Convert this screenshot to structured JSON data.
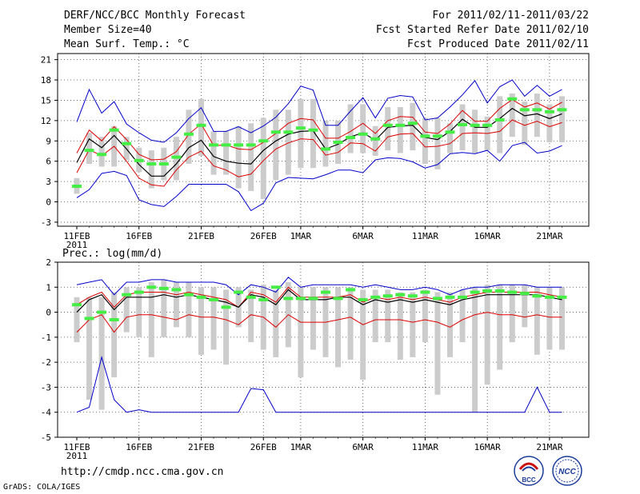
{
  "header": {
    "title": "DERF/NCC/BCC Monthly Forecast",
    "member_size": "Member Size=40",
    "variable": "Mean Surf. Temp.: °C",
    "period": "For 2011/02/11-2011/03/22",
    "started": "Fcst Started Refer Date 2011/02/10",
    "produced": "Fcst Produced Date 2011/02/11"
  },
  "footer": {
    "url": "http://cmdp.ncc.cma.gov.cn",
    "grads": "GrADS: COLA/IGES",
    "logo_bcc": "BCC",
    "logo_ncc": "NCC"
  },
  "colors": {
    "bar": "#cccccc",
    "median": "#44ee44",
    "mean": "#000000",
    "inner": "#dd0000",
    "outer": "#0000cc",
    "grid": "#444444"
  },
  "chart_data": [
    {
      "type": "line",
      "title": "Mean Surf. Temp.: °C",
      "x_tick_labels": [
        "11FEB",
        "16FEB",
        "21FEB",
        "26FEB",
        "1MAR",
        "6MAR",
        "11MAR",
        "16MAR",
        "21MAR"
      ],
      "x_tick_day_index": [
        0,
        5,
        10,
        15,
        18,
        23,
        28,
        33,
        38
      ],
      "x_year_label": "2011",
      "yticks": [
        -3,
        0,
        3,
        6,
        9,
        12,
        15,
        18,
        21
      ],
      "ylim": [
        -3.6,
        21.9
      ],
      "days": 40,
      "series": [
        {
          "name": "max",
          "values": [
            11.8,
            16.6,
            13.1,
            14.8,
            11.5,
            10.2,
            9.1,
            8.8,
            10.2,
            12.3,
            13.9,
            10.4,
            10.4,
            11.1,
            10.2,
            11.2,
            12.5,
            14.5,
            17.1,
            16.5,
            11.3,
            11.3,
            13.4,
            15.4,
            12.4,
            15.3,
            15.7,
            15.5,
            12.1,
            12.4,
            14.0,
            15.8,
            17.9,
            14.6,
            17.0,
            18.0,
            15.6,
            17.2,
            15.6,
            16.6
          ]
        },
        {
          "name": "upper",
          "values": [
            7.2,
            10.6,
            9.0,
            11.1,
            9.2,
            7.0,
            6.2,
            6.3,
            7.4,
            10.0,
            11.5,
            8.3,
            8.4,
            7.8,
            7.7,
            8.8,
            10.1,
            11.6,
            12.3,
            12.1,
            9.4,
            9.4,
            10.4,
            11.6,
            10.1,
            12.0,
            12.6,
            12.5,
            10.3,
            10.1,
            11.5,
            13.5,
            11.9,
            11.9,
            13.8,
            15.1,
            14.0,
            14.6,
            13.7,
            14.7
          ]
        },
        {
          "name": "mean",
          "values": [
            5.8,
            9.3,
            8.0,
            9.8,
            7.8,
            5.5,
            3.8,
            3.8,
            5.6,
            8.0,
            9.1,
            6.7,
            6.0,
            5.7,
            5.6,
            7.6,
            9.0,
            10.0,
            10.4,
            10.5,
            7.8,
            8.5,
            9.6,
            10.2,
            9.1,
            11.0,
            11.2,
            11.3,
            9.5,
            9.2,
            10.4,
            12.2,
            11.0,
            11.0,
            12.3,
            13.8,
            12.7,
            13.0,
            12.3,
            13.0
          ]
        },
        {
          "name": "lower",
          "values": [
            4.3,
            7.7,
            6.8,
            8.2,
            6.0,
            3.5,
            2.5,
            2.3,
            4.7,
            6.6,
            7.5,
            5.3,
            4.7,
            3.7,
            4.1,
            6.1,
            7.8,
            8.7,
            9.3,
            9.2,
            6.9,
            7.3,
            8.7,
            8.6,
            7.5,
            9.6,
            10.0,
            10.1,
            8.1,
            8.2,
            8.6,
            10.1,
            10.2,
            10.1,
            10.4,
            12.1,
            11.3,
            11.9,
            11.1,
            11.7
          ]
        },
        {
          "name": "min",
          "values": [
            0.6,
            1.8,
            4.2,
            4.5,
            3.9,
            0.3,
            -0.4,
            -0.7,
            0.8,
            2.6,
            2.6,
            2.6,
            2.6,
            1.5,
            -1.3,
            -0.2,
            2.8,
            3.6,
            3.5,
            3.4,
            4.0,
            4.7,
            4.7,
            4.3,
            6.2,
            6.5,
            6.4,
            5.9,
            5.0,
            5.5,
            7.1,
            7.3,
            7.1,
            7.6,
            6.0,
            8.3,
            8.8,
            7.2,
            7.5,
            8.3
          ]
        },
        {
          "name": "median",
          "values": [
            2.3,
            7.6,
            7.0,
            10.6,
            8.6,
            6.1,
            5.6,
            5.6,
            6.6,
            10.0,
            11.3,
            8.4,
            8.4,
            8.4,
            8.4,
            9.0,
            10.3,
            10.3,
            10.9,
            10.6,
            7.8,
            8.8,
            9.5,
            10.0,
            9.3,
            11.3,
            11.3,
            11.6,
            9.7,
            9.7,
            10.3,
            11.4,
            11.3,
            11.3,
            12.1,
            15.2,
            13.6,
            13.6,
            13.3,
            13.6
          ]
        },
        {
          "name": "bar_top",
          "values": [
            3.5,
            10.2,
            9.6,
            11.2,
            9.6,
            8.0,
            7.6,
            8.0,
            9.6,
            13.6,
            15.2,
            10.4,
            10.4,
            11.2,
            11.6,
            12.4,
            13.6,
            13.6,
            15.2,
            15.2,
            12.0,
            12.0,
            14.4,
            14.4,
            11.2,
            14.0,
            14.0,
            14.6,
            12.4,
            12.4,
            11.6,
            14.4,
            13.6,
            12.6,
            15.6,
            16.0,
            14.8,
            16.0,
            14.4,
            15.6
          ]
        },
        {
          "name": "bar_bottom",
          "values": [
            1.2,
            5.6,
            5.2,
            5.2,
            6.2,
            4.4,
            2.0,
            3.2,
            3.2,
            5.6,
            6.8,
            4.0,
            4.0,
            2.0,
            1.6,
            0.4,
            3.2,
            4.0,
            5.0,
            5.0,
            5.2,
            5.6,
            7.2,
            7.2,
            6.8,
            7.6,
            7.2,
            7.6,
            5.6,
            4.8,
            7.2,
            7.6,
            7.2,
            7.6,
            7.2,
            9.6,
            8.4,
            9.6,
            8.8,
            8.8
          ]
        }
      ]
    },
    {
      "type": "line",
      "title": "Prec.: log(mm/d)",
      "x_tick_labels": [
        "11FEB",
        "16FEB",
        "21FEB",
        "26FEB",
        "1MAR",
        "6MAR",
        "11MAR",
        "16MAR",
        "21MAR"
      ],
      "x_tick_day_index": [
        0,
        5,
        10,
        15,
        18,
        23,
        28,
        33,
        38
      ],
      "x_year_label": "2011",
      "yticks": [
        -5,
        -4,
        -3,
        -2,
        -1,
        0,
        1,
        2
      ],
      "ylim": [
        -5,
        2
      ],
      "days": 40,
      "series": [
        {
          "name": "max",
          "values": [
            1.1,
            1.2,
            1.3,
            0.7,
            1.2,
            1.2,
            1.3,
            1.3,
            1.2,
            1.2,
            1.2,
            1.2,
            1.1,
            0.7,
            1.1,
            1.0,
            0.8,
            1.4,
            1.0,
            1.1,
            1.1,
            1.1,
            1.1,
            1.0,
            1.1,
            1.0,
            0.9,
            0.9,
            1.0,
            0.9,
            0.7,
            0.9,
            1.0,
            1.0,
            1.1,
            1.1,
            1.1,
            1.0,
            1.0,
            1.0
          ]
        },
        {
          "name": "upper",
          "values": [
            0.3,
            0.6,
            0.8,
            0.2,
            0.7,
            0.8,
            0.8,
            0.8,
            0.7,
            0.8,
            0.7,
            0.6,
            0.5,
            0.2,
            0.8,
            0.7,
            0.4,
            1.0,
            0.6,
            0.6,
            0.6,
            0.6,
            0.7,
            0.4,
            0.6,
            0.5,
            0.6,
            0.5,
            0.6,
            0.5,
            0.4,
            0.6,
            0.7,
            0.8,
            0.8,
            0.8,
            0.8,
            0.8,
            0.7,
            0.6
          ]
        },
        {
          "name": "mean",
          "values": [
            0.0,
            0.5,
            0.7,
            0.1,
            0.6,
            0.6,
            0.6,
            0.7,
            0.6,
            0.7,
            0.6,
            0.5,
            0.4,
            0.2,
            0.7,
            0.6,
            0.3,
            0.9,
            0.5,
            0.5,
            0.5,
            0.6,
            0.6,
            0.3,
            0.5,
            0.4,
            0.5,
            0.4,
            0.5,
            0.4,
            0.3,
            0.5,
            0.6,
            0.7,
            0.7,
            0.7,
            0.7,
            0.7,
            0.6,
            0.5
          ]
        },
        {
          "name": "lower",
          "values": [
            -0.8,
            -0.3,
            -0.1,
            -0.8,
            -0.2,
            -0.1,
            -0.1,
            -0.2,
            -0.3,
            -0.1,
            -0.2,
            -0.2,
            -0.3,
            -0.5,
            -0.1,
            -0.2,
            -0.6,
            -0.1,
            -0.4,
            -0.4,
            -0.4,
            -0.3,
            -0.2,
            -0.5,
            -0.3,
            -0.3,
            -0.3,
            -0.4,
            -0.3,
            -0.4,
            -0.6,
            -0.3,
            -0.1,
            0.0,
            -0.1,
            -0.1,
            -0.2,
            -0.1,
            -0.2,
            -0.2
          ]
        },
        {
          "name": "min",
          "values": [
            -4.0,
            -3.8,
            -1.8,
            -3.5,
            -4.0,
            -3.9,
            -4.0,
            -4.0,
            -4.0,
            -4.0,
            -4.0,
            -4.0,
            -4.0,
            -4.0,
            -3.05,
            -3.1,
            -4.0,
            -4.0,
            -4.0,
            -4.0,
            -4.0,
            -4.0,
            -4.0,
            -4.0,
            -4.0,
            -4.0,
            -4.0,
            -4.0,
            -4.0,
            -4.0,
            -4.0,
            -4.0,
            -4.0,
            -4.0,
            -4.0,
            -4.0,
            -4.0,
            -3.0,
            -4.0,
            -4.0
          ]
        },
        {
          "name": "median",
          "values": [
            0.3,
            -0.25,
            0.0,
            -0.3,
            0.7,
            0.8,
            1.0,
            0.95,
            0.9,
            0.7,
            0.6,
            0.5,
            0.2,
            0.8,
            0.6,
            0.5,
            1.0,
            0.55,
            0.55,
            0.55,
            0.8,
            0.55,
            0.9,
            0.5,
            0.6,
            0.65,
            0.7,
            0.65,
            0.8,
            0.55,
            0.6,
            0.6,
            0.8,
            0.85,
            0.85,
            0.8,
            0.75,
            0.65,
            0.6,
            0.6
          ]
        },
        {
          "name": "bar_top",
          "values": [
            0.6,
            0.6,
            0.6,
            0.8,
            1.0,
            1.0,
            1.2,
            1.3,
            1.2,
            1.2,
            1.0,
            1.0,
            0.9,
            1.0,
            0.9,
            1.1,
            0.9,
            1.2,
            1.0,
            1.0,
            1.0,
            1.0,
            1.0,
            0.9,
            0.9,
            0.9,
            0.8,
            0.8,
            0.9,
            0.8,
            0.8,
            0.9,
            1.0,
            1.1,
            1.1,
            1.1,
            1.1,
            1.0,
            1.0,
            1.0
          ]
        },
        {
          "name": "bar_bottom",
          "values": [
            -1.2,
            -3.5,
            -3.9,
            -2.6,
            -0.8,
            -1.0,
            -1.8,
            -1.0,
            -0.6,
            -1.0,
            -1.7,
            -1.5,
            -2.1,
            -0.6,
            -1.2,
            -1.5,
            -1.8,
            -1.4,
            -2.6,
            -1.5,
            -1.8,
            -2.2,
            -1.9,
            -2.7,
            -1.2,
            -1.2,
            -1.9,
            -1.8,
            -1.2,
            -3.3,
            -1.8,
            -1.2,
            -4.0,
            -2.9,
            -2.3,
            -1.2,
            -0.6,
            -1.7,
            -1.5,
            -1.5
          ]
        }
      ]
    }
  ]
}
